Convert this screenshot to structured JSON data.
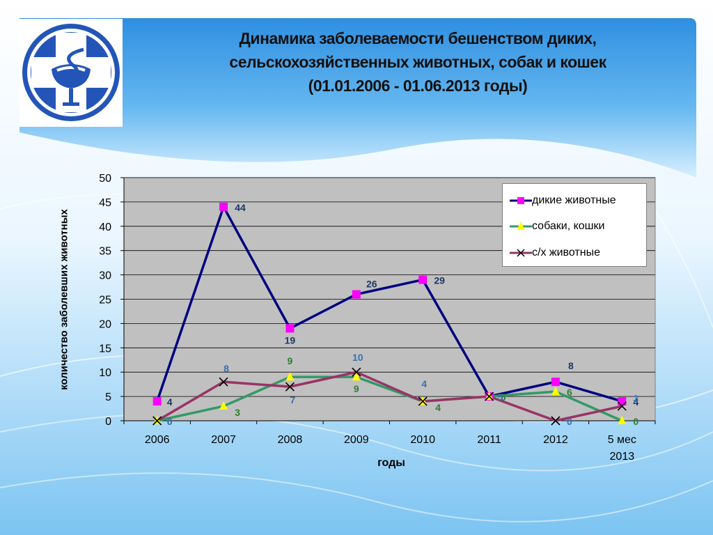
{
  "slide": {
    "title_lines": [
      "Динамика заболеваемости бешенством диких,",
      "сельскохозяйственных животных, собак и кошек",
      "(01.01.2006 - 01.06.2013 годы)"
    ],
    "logo_icon": "medical-cross-bowl-snake-icon"
  },
  "chart_data": {
    "type": "line",
    "categories": [
      "2006",
      "2007",
      "2008",
      "2009",
      "2010",
      "2011",
      "2012",
      "5 мес 2013"
    ],
    "ylabel": "количество заболевших животных",
    "xlabel": "годы",
    "ylim": [
      0,
      50
    ],
    "yticks": [
      0,
      5,
      10,
      15,
      20,
      25,
      30,
      35,
      40,
      45,
      50
    ],
    "grid": true,
    "legend_position": "top-right",
    "series": [
      {
        "name": "дикие животные",
        "color": "#000080",
        "marker": "square",
        "marker_color": "#ff00ff",
        "values": [
          4,
          44,
          19,
          26,
          29,
          5,
          8,
          4
        ],
        "label_color": "#1f3864"
      },
      {
        "name": "собаки, кошки",
        "color": "#339966",
        "marker": "triangle",
        "marker_color": "#ffff00",
        "values": [
          0,
          3,
          9,
          9,
          4,
          5,
          6,
          0
        ],
        "label_color": "#2e7d32"
      },
      {
        "name": "с/х животные",
        "color": "#993366",
        "marker": "x",
        "marker_color": "#000000",
        "values": [
          0,
          8,
          7,
          10,
          4,
          5,
          0,
          3
        ],
        "label_color": "#3a6fb0"
      }
    ]
  }
}
